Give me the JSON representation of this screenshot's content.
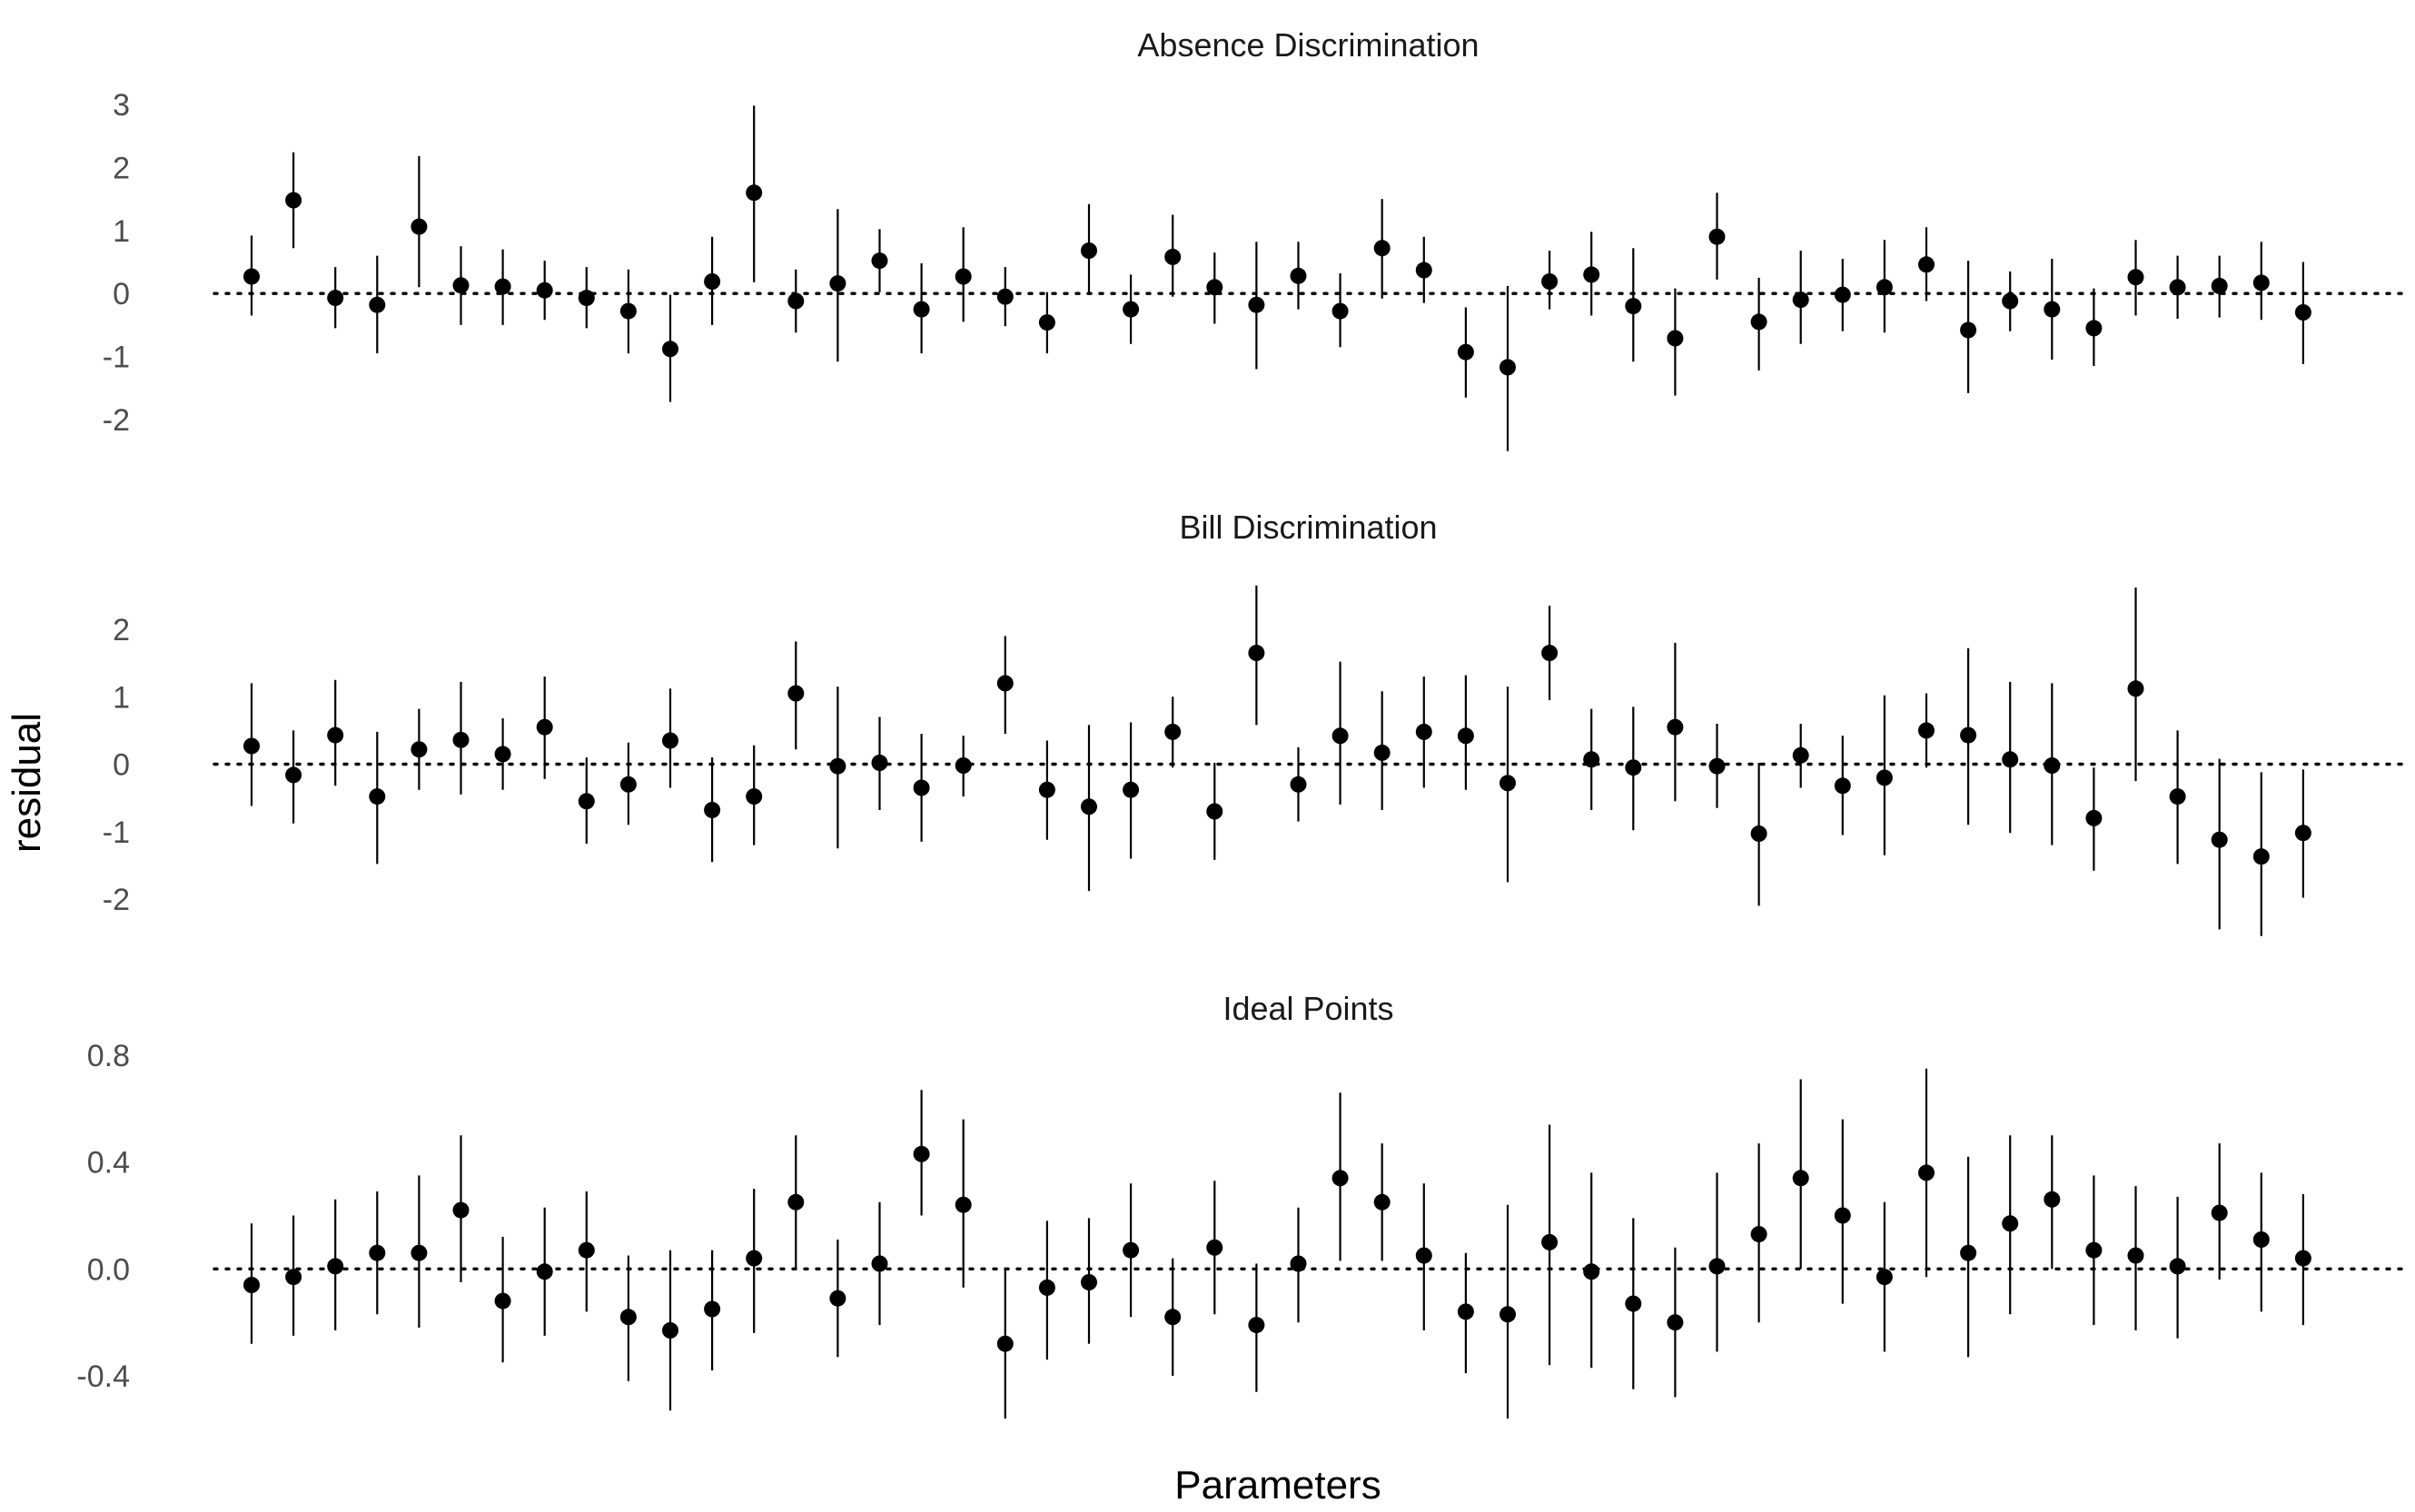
{
  "chart_data": {
    "type": "scatter",
    "subtype": "pointrange",
    "xlabel": "Parameters",
    "ylabel": "residual",
    "grid": false,
    "reference_line": {
      "y": 0,
      "style": "dotted"
    },
    "colors": {
      "point": "#000000",
      "errorbar": "#000000",
      "tick_label": "#4d4d4d",
      "background": "#ffffff"
    },
    "panels": [
      {
        "title": "Absence Discrimination",
        "yticks": [
          3,
          2,
          1,
          0,
          -1,
          -2
        ],
        "ytick_labels": [
          "3",
          "2",
          "1",
          "0",
          "-1",
          "-2"
        ],
        "ylim": [
          -2.55,
          3.1
        ],
        "points": [
          {
            "y": 0.27,
            "lo": -0.35,
            "hi": 0.92
          },
          {
            "y": 1.48,
            "lo": 0.72,
            "hi": 2.24
          },
          {
            "y": -0.07,
            "lo": -0.55,
            "hi": 0.42
          },
          {
            "y": -0.18,
            "lo": -0.95,
            "hi": 0.6
          },
          {
            "y": 1.06,
            "lo": 0.1,
            "hi": 2.18
          },
          {
            "y": 0.13,
            "lo": -0.5,
            "hi": 0.75
          },
          {
            "y": 0.11,
            "lo": -0.5,
            "hi": 0.7
          },
          {
            "y": 0.05,
            "lo": -0.42,
            "hi": 0.52
          },
          {
            "y": -0.07,
            "lo": -0.55,
            "hi": 0.42
          },
          {
            "y": -0.28,
            "lo": -0.95,
            "hi": 0.38
          },
          {
            "y": -0.88,
            "lo": -1.72,
            "hi": -0.02
          },
          {
            "y": 0.19,
            "lo": -0.5,
            "hi": 0.9
          },
          {
            "y": 1.6,
            "lo": 0.18,
            "hi": 2.98
          },
          {
            "y": -0.12,
            "lo": -0.62,
            "hi": 0.38
          },
          {
            "y": 0.16,
            "lo": -1.08,
            "hi": 1.34
          },
          {
            "y": 0.52,
            "lo": 0.02,
            "hi": 1.02
          },
          {
            "y": -0.25,
            "lo": -0.95,
            "hi": 0.48
          },
          {
            "y": 0.27,
            "lo": -0.45,
            "hi": 1.05
          },
          {
            "y": -0.05,
            "lo": -0.52,
            "hi": 0.42
          },
          {
            "y": -0.46,
            "lo": -0.95,
            "hi": 0.02
          },
          {
            "y": 0.68,
            "lo": 0.02,
            "hi": 1.42
          },
          {
            "y": -0.25,
            "lo": -0.8,
            "hi": 0.3
          },
          {
            "y": 0.58,
            "lo": -0.05,
            "hi": 1.25
          },
          {
            "y": 0.1,
            "lo": -0.48,
            "hi": 0.65
          },
          {
            "y": -0.18,
            "lo": -1.2,
            "hi": 0.82
          },
          {
            "y": 0.28,
            "lo": -0.25,
            "hi": 0.82
          },
          {
            "y": -0.28,
            "lo": -0.85,
            "hi": 0.32
          },
          {
            "y": 0.72,
            "lo": -0.08,
            "hi": 1.5
          },
          {
            "y": 0.37,
            "lo": -0.15,
            "hi": 0.9
          },
          {
            "y": -0.93,
            "lo": -1.65,
            "hi": -0.22
          },
          {
            "y": -1.17,
            "lo": -2.5,
            "hi": 0.12
          },
          {
            "y": 0.19,
            "lo": -0.25,
            "hi": 0.68
          },
          {
            "y": 0.3,
            "lo": -0.35,
            "hi": 0.98
          },
          {
            "y": -0.2,
            "lo": -1.08,
            "hi": 0.72
          },
          {
            "y": -0.71,
            "lo": -1.62,
            "hi": 0.08
          },
          {
            "y": 0.9,
            "lo": 0.22,
            "hi": 1.6
          },
          {
            "y": -0.45,
            "lo": -1.22,
            "hi": 0.25
          },
          {
            "y": -0.1,
            "lo": -0.8,
            "hi": 0.68
          },
          {
            "y": -0.02,
            "lo": -0.6,
            "hi": 0.55
          },
          {
            "y": 0.1,
            "lo": -0.62,
            "hi": 0.85
          },
          {
            "y": 0.46,
            "lo": -0.12,
            "hi": 1.05
          },
          {
            "y": -0.58,
            "lo": -1.58,
            "hi": 0.52
          },
          {
            "y": -0.12,
            "lo": -0.6,
            "hi": 0.35
          },
          {
            "y": -0.25,
            "lo": -1.05,
            "hi": 0.55
          },
          {
            "y": -0.55,
            "lo": -1.15,
            "hi": 0.08
          },
          {
            "y": 0.26,
            "lo": -0.35,
            "hi": 0.85
          },
          {
            "y": 0.1,
            "lo": -0.4,
            "hi": 0.6
          },
          {
            "y": 0.12,
            "lo": -0.38,
            "hi": 0.6
          },
          {
            "y": 0.17,
            "lo": -0.42,
            "hi": 0.82
          },
          {
            "y": -0.3,
            "lo": -1.12,
            "hi": 0.5
          }
        ]
      },
      {
        "title": "Bill Discrimination",
        "yticks": [
          2,
          1,
          0,
          -1,
          -2
        ],
        "ytick_labels": [
          "2",
          "1",
          "0",
          "-1",
          "-2"
        ],
        "ylim": [
          -2.55,
          2.65
        ],
        "points": [
          {
            "y": 0.27,
            "lo": -0.62,
            "hi": 1.2
          },
          {
            "y": -0.16,
            "lo": -0.88,
            "hi": 0.5
          },
          {
            "y": 0.43,
            "lo": -0.32,
            "hi": 1.25
          },
          {
            "y": -0.48,
            "lo": -1.48,
            "hi": 0.48
          },
          {
            "y": 0.22,
            "lo": -0.38,
            "hi": 0.82
          },
          {
            "y": 0.36,
            "lo": -0.45,
            "hi": 1.22
          },
          {
            "y": 0.15,
            "lo": -0.38,
            "hi": 0.68
          },
          {
            "y": 0.55,
            "lo": -0.22,
            "hi": 1.3
          },
          {
            "y": -0.55,
            "lo": -1.18,
            "hi": 0.1
          },
          {
            "y": -0.3,
            "lo": -0.9,
            "hi": 0.32
          },
          {
            "y": 0.35,
            "lo": -0.35,
            "hi": 1.12
          },
          {
            "y": -0.68,
            "lo": -1.45,
            "hi": 0.1
          },
          {
            "y": -0.48,
            "lo": -1.2,
            "hi": 0.28
          },
          {
            "y": 1.05,
            "lo": 0.22,
            "hi": 1.82
          },
          {
            "y": -0.03,
            "lo": -1.25,
            "hi": 1.15
          },
          {
            "y": 0.02,
            "lo": -0.68,
            "hi": 0.7
          },
          {
            "y": -0.35,
            "lo": -1.15,
            "hi": 0.45
          },
          {
            "y": -0.02,
            "lo": -0.48,
            "hi": 0.42
          },
          {
            "y": 1.2,
            "lo": 0.45,
            "hi": 1.9
          },
          {
            "y": -0.38,
            "lo": -1.12,
            "hi": 0.35
          },
          {
            "y": -0.63,
            "lo": -1.88,
            "hi": 0.58
          },
          {
            "y": -0.38,
            "lo": -1.4,
            "hi": 0.62
          },
          {
            "y": 0.48,
            "lo": -0.05,
            "hi": 1.0
          },
          {
            "y": -0.7,
            "lo": -1.42,
            "hi": 0.02
          },
          {
            "y": 1.65,
            "lo": 0.58,
            "hi": 2.65
          },
          {
            "y": -0.3,
            "lo": -0.85,
            "hi": 0.25
          },
          {
            "y": 0.42,
            "lo": -0.6,
            "hi": 1.52
          },
          {
            "y": 0.17,
            "lo": -0.68,
            "hi": 1.08
          },
          {
            "y": 0.48,
            "lo": -0.35,
            "hi": 1.3
          },
          {
            "y": 0.42,
            "lo": -0.38,
            "hi": 1.32
          },
          {
            "y": -0.28,
            "lo": -1.75,
            "hi": 1.15
          },
          {
            "y": 1.65,
            "lo": 0.95,
            "hi": 2.35
          },
          {
            "y": 0.07,
            "lo": -0.68,
            "hi": 0.82
          },
          {
            "y": -0.05,
            "lo": -0.98,
            "hi": 0.85
          },
          {
            "y": 0.55,
            "lo": -0.55,
            "hi": 1.8
          },
          {
            "y": -0.03,
            "lo": -0.65,
            "hi": 0.6
          },
          {
            "y": -1.03,
            "lo": -2.1,
            "hi": 0.02
          },
          {
            "y": 0.13,
            "lo": -0.35,
            "hi": 0.6
          },
          {
            "y": -0.32,
            "lo": -1.05,
            "hi": 0.42
          },
          {
            "y": -0.2,
            "lo": -1.35,
            "hi": 1.02
          },
          {
            "y": 0.5,
            "lo": -0.05,
            "hi": 1.05
          },
          {
            "y": 0.43,
            "lo": -0.9,
            "hi": 1.72
          },
          {
            "y": 0.07,
            "lo": -1.02,
            "hi": 1.22
          },
          {
            "y": -0.02,
            "lo": -1.2,
            "hi": 1.2
          },
          {
            "y": -0.8,
            "lo": -1.58,
            "hi": -0.05
          },
          {
            "y": 1.12,
            "lo": -0.25,
            "hi": 2.62
          },
          {
            "y": -0.48,
            "lo": -1.48,
            "hi": 0.5
          },
          {
            "y": -1.12,
            "lo": -2.45,
            "hi": 0.08
          },
          {
            "y": -1.37,
            "lo": -2.55,
            "hi": -0.12
          },
          {
            "y": -1.02,
            "lo": -1.98,
            "hi": -0.08
          }
        ]
      },
      {
        "title": "Ideal Points",
        "yticks": [
          0.8,
          0.4,
          0.0,
          -0.4
        ],
        "ytick_labels": [
          "0.8",
          "0.4",
          "0.0",
          "-0.4"
        ],
        "ylim": [
          -0.57,
          0.75
        ],
        "points": [
          {
            "y": -0.06,
            "lo": -0.28,
            "hi": 0.17
          },
          {
            "y": -0.03,
            "lo": -0.25,
            "hi": 0.2
          },
          {
            "y": 0.01,
            "lo": -0.23,
            "hi": 0.26
          },
          {
            "y": 0.06,
            "lo": -0.17,
            "hi": 0.29
          },
          {
            "y": 0.06,
            "lo": -0.22,
            "hi": 0.35
          },
          {
            "y": 0.22,
            "lo": -0.05,
            "hi": 0.5
          },
          {
            "y": -0.12,
            "lo": -0.35,
            "hi": 0.12
          },
          {
            "y": -0.01,
            "lo": -0.25,
            "hi": 0.23
          },
          {
            "y": 0.07,
            "lo": -0.16,
            "hi": 0.29
          },
          {
            "y": -0.18,
            "lo": -0.42,
            "hi": 0.05
          },
          {
            "y": -0.23,
            "lo": -0.53,
            "hi": 0.07
          },
          {
            "y": -0.15,
            "lo": -0.38,
            "hi": 0.07
          },
          {
            "y": 0.04,
            "lo": -0.24,
            "hi": 0.3
          },
          {
            "y": 0.25,
            "lo": 0.0,
            "hi": 0.5
          },
          {
            "y": -0.11,
            "lo": -0.33,
            "hi": 0.11
          },
          {
            "y": 0.02,
            "lo": -0.21,
            "hi": 0.25
          },
          {
            "y": 0.43,
            "lo": 0.2,
            "hi": 0.67
          },
          {
            "y": 0.24,
            "lo": -0.07,
            "hi": 0.56
          },
          {
            "y": -0.28,
            "lo": -0.56,
            "hi": 0.0
          },
          {
            "y": -0.07,
            "lo": -0.34,
            "hi": 0.18
          },
          {
            "y": -0.05,
            "lo": -0.28,
            "hi": 0.19
          },
          {
            "y": 0.07,
            "lo": -0.18,
            "hi": 0.32
          },
          {
            "y": -0.18,
            "lo": -0.4,
            "hi": 0.04
          },
          {
            "y": 0.08,
            "lo": -0.17,
            "hi": 0.33
          },
          {
            "y": -0.21,
            "lo": -0.46,
            "hi": 0.02
          },
          {
            "y": 0.02,
            "lo": -0.2,
            "hi": 0.23
          },
          {
            "y": 0.34,
            "lo": 0.03,
            "hi": 0.66
          },
          {
            "y": 0.25,
            "lo": 0.03,
            "hi": 0.47
          },
          {
            "y": 0.05,
            "lo": -0.23,
            "hi": 0.32
          },
          {
            "y": -0.16,
            "lo": -0.39,
            "hi": 0.06
          },
          {
            "y": -0.17,
            "lo": -0.56,
            "hi": 0.24
          },
          {
            "y": 0.1,
            "lo": -0.36,
            "hi": 0.54
          },
          {
            "y": -0.01,
            "lo": -0.37,
            "hi": 0.36
          },
          {
            "y": -0.13,
            "lo": -0.45,
            "hi": 0.19
          },
          {
            "y": -0.2,
            "lo": -0.48,
            "hi": 0.08
          },
          {
            "y": 0.01,
            "lo": -0.31,
            "hi": 0.36
          },
          {
            "y": 0.13,
            "lo": -0.2,
            "hi": 0.47
          },
          {
            "y": 0.34,
            "lo": 0.0,
            "hi": 0.71
          },
          {
            "y": 0.2,
            "lo": -0.13,
            "hi": 0.56
          },
          {
            "y": -0.03,
            "lo": -0.31,
            "hi": 0.25
          },
          {
            "y": 0.36,
            "lo": -0.03,
            "hi": 0.75
          },
          {
            "y": 0.06,
            "lo": -0.33,
            "hi": 0.42
          },
          {
            "y": 0.17,
            "lo": -0.17,
            "hi": 0.5
          },
          {
            "y": 0.26,
            "lo": 0.0,
            "hi": 0.5
          },
          {
            "y": 0.07,
            "lo": -0.21,
            "hi": 0.35
          },
          {
            "y": 0.05,
            "lo": -0.23,
            "hi": 0.31
          },
          {
            "y": 0.01,
            "lo": -0.26,
            "hi": 0.27
          },
          {
            "y": 0.21,
            "lo": -0.04,
            "hi": 0.47
          },
          {
            "y": 0.11,
            "lo": -0.16,
            "hi": 0.36
          },
          {
            "y": 0.04,
            "lo": -0.21,
            "hi": 0.28
          }
        ]
      }
    ]
  }
}
